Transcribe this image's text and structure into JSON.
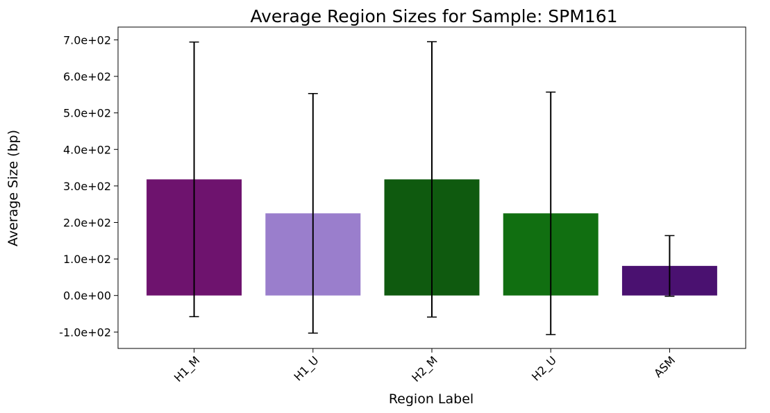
{
  "chart_data": {
    "type": "bar",
    "title": "Average Region Sizes for Sample: SPM161",
    "xlabel": "Region Label",
    "ylabel": "Average Size (bp)",
    "categories": [
      "H1_M",
      "H1_U",
      "H2_M",
      "H2_U",
      "ASM"
    ],
    "values": [
      318,
      225,
      318,
      225,
      81
    ],
    "errors": [
      376,
      328,
      377,
      332,
      83
    ],
    "colors": [
      "#6e136e",
      "#9a7ecc",
      "#0f5a0f",
      "#116f11",
      "#4a1170"
    ],
    "ylim": [
      -145,
      735
    ],
    "yticks": [
      -100,
      0,
      100,
      200,
      300,
      400,
      500,
      600,
      700
    ],
    "ytick_labels": [
      "-1.0e+02",
      "0.0e+00",
      "1.0e+02",
      "2.0e+02",
      "3.0e+02",
      "4.0e+02",
      "5.0e+02",
      "6.0e+02",
      "7.0e+02"
    ],
    "grid": false,
    "legend": false
  }
}
